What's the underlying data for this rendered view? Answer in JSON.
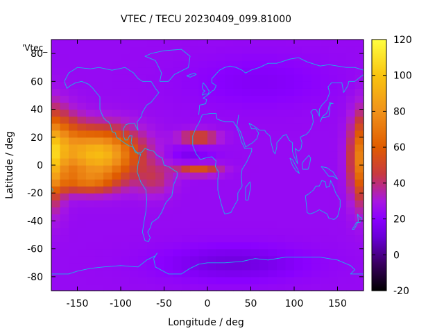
{
  "chart_data": {
    "type": "heatmap",
    "title": "VTEC / TECU 20230409_099.81000",
    "xlabel": "Longitude / deg",
    "ylabel": "Latitude / deg",
    "legend_label": "'Vtec_",
    "xlim": [
      -180,
      180
    ],
    "ylim": [
      -90,
      90
    ],
    "x_ticks": [
      -150,
      -100,
      -50,
      0,
      50,
      100,
      150
    ],
    "y_ticks": [
      -80,
      -60,
      -40,
      -20,
      0,
      20,
      40,
      60,
      80
    ],
    "colorbar": {
      "range": [
        -20,
        120
      ],
      "ticks": [
        -20,
        0,
        20,
        40,
        60,
        80,
        100,
        120
      ],
      "palette": [
        {
          "v": -20,
          "c": "#000000"
        },
        {
          "v": -5,
          "c": "#3a0060"
        },
        {
          "v": 10,
          "c": "#6a00d8"
        },
        {
          "v": 20,
          "c": "#8a00ff"
        },
        {
          "v": 30,
          "c": "#a818e0"
        },
        {
          "v": 45,
          "c": "#c83a40"
        },
        {
          "v": 60,
          "c": "#e05c00"
        },
        {
          "v": 80,
          "c": "#f0921a"
        },
        {
          "v": 100,
          "c": "#f9c410"
        },
        {
          "v": 120,
          "c": "#ffff40"
        }
      ]
    },
    "grid": {
      "lon_step": 10,
      "lat_step": 5,
      "base": 24,
      "features": [
        {
          "lon": -125,
          "lat": 8,
          "slon": 45,
          "slat": 18,
          "amp": 72
        },
        {
          "lon": -140,
          "lat": -12,
          "slon": 35,
          "slat": 8,
          "amp": 28
        },
        {
          "lon": -165,
          "lat": 20,
          "slon": 22,
          "slat": 20,
          "amp": 22
        },
        {
          "lon": -60,
          "lat": -10,
          "slon": 20,
          "slat": 12,
          "amp": 15
        },
        {
          "lon": -10,
          "lat": 20,
          "slon": 22,
          "slat": 5,
          "amp": 30
        },
        {
          "lon": -10,
          "lat": -3,
          "slon": 25,
          "slat": 4,
          "amp": 32
        },
        {
          "lon": -20,
          "lat": 8,
          "slon": 25,
          "slat": 6,
          "amp": -8
        },
        {
          "lon": 180,
          "lat": 5,
          "slon": 15,
          "slat": 30,
          "amp": 55
        },
        {
          "lon": -180,
          "lat": 5,
          "slon": 15,
          "slat": 30,
          "amp": 55
        },
        {
          "lon": 30,
          "lat": -70,
          "slon": 80,
          "slat": 12,
          "amp": -12
        },
        {
          "lon": 60,
          "lat": 60,
          "slon": 80,
          "slat": 18,
          "amp": -6
        }
      ]
    }
  }
}
